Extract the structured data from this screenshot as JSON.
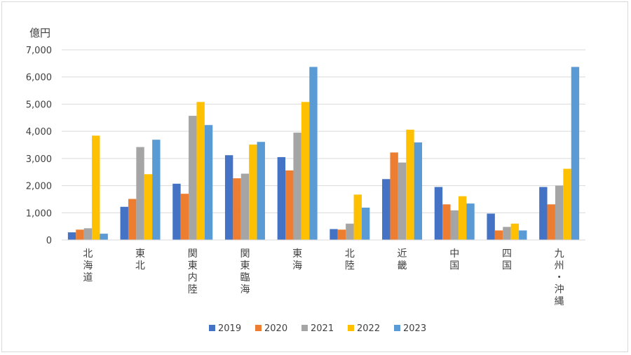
{
  "chart_data": {
    "type": "bar",
    "unit_label": "億円",
    "categories": [
      "北海道",
      "東北",
      "関東内陸",
      "関東臨海",
      "東海",
      "北陸",
      "近畿",
      "中国",
      "四国",
      "九州・沖縄"
    ],
    "ylim": [
      0,
      7000
    ],
    "yticks": [
      "0",
      "1,000",
      "2,000",
      "3,000",
      "4,000",
      "5,000",
      "6,000",
      "7,000"
    ],
    "ytick_values": [
      0,
      1000,
      2000,
      3000,
      4000,
      5000,
      6000,
      7000
    ],
    "grid": true,
    "legend_position": "bottom",
    "series": [
      {
        "name": "2019",
        "color": "#4472c4",
        "values": [
          280,
          1220,
          2070,
          3120,
          3050,
          400,
          2240,
          1950,
          970,
          1950
        ]
      },
      {
        "name": "2020",
        "color": "#ed7d31",
        "values": [
          380,
          1510,
          1700,
          2270,
          2560,
          380,
          3220,
          1310,
          350,
          1310
        ]
      },
      {
        "name": "2021",
        "color": "#a5a5a5",
        "values": [
          430,
          3420,
          4570,
          2440,
          3950,
          600,
          2850,
          1090,
          480,
          2000
        ]
      },
      {
        "name": "2022",
        "color": "#ffc000",
        "values": [
          3840,
          2420,
          5080,
          3510,
          5080,
          1670,
          4060,
          1610,
          600,
          2620
        ]
      },
      {
        "name": "2023",
        "color": "#5b9bd5",
        "values": [
          230,
          3690,
          4230,
          3610,
          6370,
          1190,
          3590,
          1340,
          350,
          6370
        ]
      }
    ]
  }
}
